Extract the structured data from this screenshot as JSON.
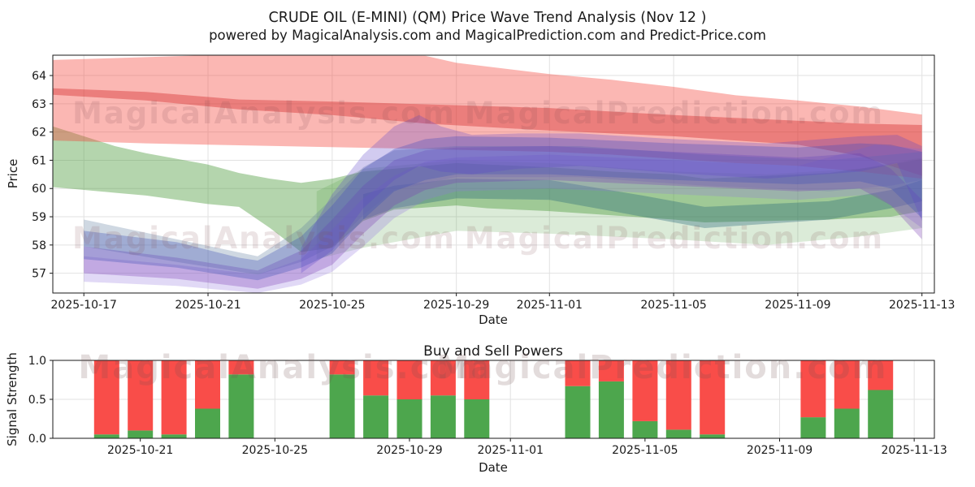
{
  "figure": {
    "title_line1": "CRUDE OIL (E-MINI) (QM) Price Wave Trend Analysis (Nov 12 )",
    "title_line2": "powered by MagicalAnalysis.com and MagicalPrediction.com and Predict-Price.com"
  },
  "watermarks": {
    "left": "MagicalAnalysis.com",
    "right": "MagicalPrediction.com"
  },
  "chart_data": [
    {
      "type": "area",
      "name": "price_wave_trend",
      "xlabel": "Date",
      "ylabel": "Price",
      "ylim": [
        56.3,
        64.72
      ],
      "yticks": [
        57,
        58,
        59,
        60,
        61,
        62,
        63,
        64
      ],
      "x_start": "2025-10-16",
      "x_days": 28.4,
      "x_offset_days": 0,
      "grid": true,
      "xticks": [
        "2025-10-17",
        "2025-10-21",
        "2025-10-25",
        "2025-10-29",
        "2025-11-01",
        "2025-11-05",
        "2025-11-09",
        "2025-11-13"
      ],
      "bands": [
        {
          "name": "pale-green-outer-band",
          "color": "rgba(76,155,60,0.20)",
          "points": [
            [
              8.5,
              57.5,
              59.9
            ],
            [
              10,
              57.9,
              60.7
            ],
            [
              13,
              58.5,
              61.0
            ],
            [
              16,
              58.4,
              60.9
            ],
            [
              20,
              58.2,
              60.6
            ],
            [
              23,
              58.0,
              60.5
            ],
            [
              26,
              58.3,
              60.7
            ],
            [
              28,
              58.6,
              61.1
            ]
          ]
        },
        {
          "name": "green-band",
          "color": "rgba(76,155,60,0.42)",
          "points": [
            [
              0,
              60.05,
              62.2
            ],
            [
              2,
              59.85,
              61.5
            ],
            [
              3,
              59.75,
              61.25
            ],
            [
              5,
              59.45,
              60.85
            ],
            [
              6,
              59.35,
              60.55
            ],
            [
              7,
              58.6,
              60.35
            ],
            [
              8,
              57.75,
              60.2
            ],
            [
              9,
              57.9,
              60.35
            ],
            [
              10,
              58.85,
              60.6
            ],
            [
              11,
              59.25,
              60.7
            ],
            [
              13,
              59.4,
              60.9
            ],
            [
              14,
              59.3,
              60.85
            ],
            [
              16,
              59.2,
              60.75
            ],
            [
              18,
              59.05,
              60.6
            ],
            [
              20,
              58.9,
              60.5
            ],
            [
              21,
              58.8,
              60.35
            ],
            [
              23,
              58.85,
              60.45
            ],
            [
              25,
              58.9,
              60.55
            ],
            [
              27,
              59.0,
              60.85
            ],
            [
              28,
              59.2,
              61.05
            ]
          ]
        },
        {
          "name": "teal-inner-band",
          "color": "rgba(38,100,120,0.35)",
          "points": [
            [
              10,
              58.9,
              59.8
            ],
            [
              11,
              59.3,
              60.1
            ],
            [
              13,
              59.65,
              60.35
            ],
            [
              16,
              59.6,
              60.3
            ],
            [
              19,
              59.0,
              59.75
            ],
            [
              21,
              58.6,
              59.35
            ],
            [
              23,
              58.75,
              59.45
            ],
            [
              25,
              58.9,
              59.55
            ],
            [
              27,
              59.3,
              59.95
            ],
            [
              28,
              59.55,
              60.3
            ]
          ]
        },
        {
          "name": "red-outer-band",
          "color": "rgba(244,67,54,0.38)",
          "points": [
            [
              0,
              61.7,
              64.55
            ],
            [
              3,
              61.6,
              64.65
            ],
            [
              5,
              61.55,
              64.72
            ],
            [
              12,
              61.4,
              64.7
            ],
            [
              13,
              61.37,
              64.45
            ],
            [
              16,
              61.3,
              64.05
            ],
            [
              18,
              61.2,
              63.85
            ],
            [
              20,
              61.05,
              63.6
            ],
            [
              22,
              60.9,
              63.3
            ],
            [
              24,
              60.8,
              63.12
            ],
            [
              26,
              60.6,
              62.9
            ],
            [
              28,
              60.35,
              62.62
            ]
          ]
        },
        {
          "name": "red-inner-band",
          "color": "rgba(211,47,47,0.42)",
          "points": [
            [
              0,
              63.32,
              63.55
            ],
            [
              3,
              63.12,
              63.42
            ],
            [
              6,
              62.8,
              63.15
            ],
            [
              9,
              62.6,
              63.08
            ],
            [
              12,
              62.3,
              62.98
            ],
            [
              16,
              62.05,
              62.85
            ],
            [
              20,
              61.85,
              62.6
            ],
            [
              24,
              61.55,
              62.4
            ],
            [
              26,
              61.15,
              62.3
            ],
            [
              28,
              60.45,
              62.25
            ]
          ]
        },
        {
          "name": "steel-band",
          "color": "rgba(96,125,160,0.30)",
          "points": [
            [
              1,
              57.95,
              58.9
            ],
            [
              4,
              57.4,
              58.2
            ],
            [
              6.6,
              56.95,
              57.6
            ],
            [
              8,
              57.4,
              58.6
            ],
            [
              9,
              57.95,
              59.65
            ],
            [
              10,
              59.05,
              60.75
            ],
            [
              11,
              59.95,
              61.35
            ],
            [
              13,
              60.4,
              61.5
            ],
            [
              17,
              60.4,
              61.5
            ],
            [
              21,
              60.1,
              61.2
            ],
            [
              25,
              59.9,
              61.0
            ],
            [
              27,
              60.1,
              61.2
            ],
            [
              28,
              60.3,
              61.3
            ]
          ]
        },
        {
          "name": "lavender-band",
          "color": "rgba(149,117,222,0.28)",
          "points": [
            [
              1,
              56.7,
              57.6
            ],
            [
              4,
              56.55,
              57.3
            ],
            [
              6.6,
              56.3,
              56.95
            ],
            [
              8,
              56.6,
              57.5
            ],
            [
              9,
              57.05,
              58.55
            ],
            [
              10,
              57.95,
              59.65
            ],
            [
              11,
              58.95,
              60.45
            ],
            [
              12,
              59.6,
              60.95
            ],
            [
              13,
              59.9,
              61.1
            ],
            [
              16,
              60.0,
              61.2
            ],
            [
              20,
              59.8,
              61.0
            ],
            [
              24,
              59.6,
              60.8
            ],
            [
              26.5,
              59.8,
              61.55
            ],
            [
              28,
              58.6,
              61.4
            ]
          ]
        },
        {
          "name": "purple-band",
          "color": "rgba(123,60,180,0.30)",
          "points": [
            [
              1,
              57.0,
              57.95
            ],
            [
              4,
              56.8,
              57.55
            ],
            [
              6.6,
              56.45,
              57.1
            ],
            [
              8,
              56.8,
              57.8
            ],
            [
              9,
              57.3,
              58.9
            ],
            [
              10,
              58.4,
              60.1
            ],
            [
              11,
              59.4,
              61.0
            ],
            [
              12,
              59.95,
              61.35
            ],
            [
              13,
              60.2,
              61.45
            ],
            [
              16,
              60.3,
              61.5
            ],
            [
              20,
              60.1,
              61.3
            ],
            [
              24,
              59.9,
              61.1
            ],
            [
              26,
              60.0,
              61.25
            ],
            [
              27,
              59.4,
              60.7
            ],
            [
              28,
              58.2,
              59.6
            ]
          ]
        },
        {
          "name": "blue-band",
          "color": "rgba(63,81,181,0.33)",
          "points": [
            [
              1,
              57.5,
              58.5
            ],
            [
              4,
              57.2,
              58.1
            ],
            [
              6,
              56.85,
              57.55
            ],
            [
              6.6,
              56.75,
              57.45
            ],
            [
              8,
              57.2,
              58.3
            ],
            [
              9,
              57.7,
              59.4
            ],
            [
              10,
              58.9,
              60.7
            ],
            [
              11,
              59.9,
              61.4
            ],
            [
              12,
              60.3,
              61.75
            ],
            [
              13,
              60.5,
              61.85
            ],
            [
              16,
              60.5,
              61.8
            ],
            [
              20,
              60.3,
              61.6
            ],
            [
              24,
              60.15,
              61.45
            ],
            [
              26,
              60.25,
              61.6
            ],
            [
              27,
              60.0,
              61.55
            ],
            [
              28,
              58.95,
              61.3
            ]
          ]
        },
        {
          "name": "violet-band",
          "color": "rgba(92,70,200,0.28)",
          "points": [
            [
              8,
              57.0,
              57.9
            ],
            [
              9,
              57.8,
              59.8
            ],
            [
              10,
              59.3,
              61.2
            ],
            [
              11,
              60.3,
              62.2
            ],
            [
              11.8,
              60.8,
              62.6
            ],
            [
              12.5,
              60.6,
              62.2
            ],
            [
              13.5,
              60.5,
              61.9
            ],
            [
              15,
              60.7,
              61.95
            ],
            [
              17,
              60.8,
              61.95
            ],
            [
              20,
              60.55,
              61.75
            ],
            [
              23,
              60.35,
              61.6
            ],
            [
              26,
              60.6,
              61.85
            ],
            [
              27.2,
              60.9,
              61.9
            ],
            [
              28,
              58.85,
              61.5
            ]
          ]
        }
      ]
    },
    {
      "type": "bar",
      "name": "buy_sell_powers",
      "title": "Buy and Sell Powers",
      "xlabel": "Date",
      "ylabel": "Signal Strength",
      "ylim": [
        0,
        1
      ],
      "yticks": [
        0,
        0.5,
        1
      ],
      "ytick_labels": [
        "0.0",
        "0.5",
        "1.0"
      ],
      "x_start": "2025-10-18",
      "x_days": 26.2,
      "x_offset_days": 0.4,
      "grid": true,
      "xticks": [
        "2025-10-21",
        "2025-10-25",
        "2025-10-29",
        "2025-11-01",
        "2025-11-05",
        "2025-11-09",
        "2025-11-13"
      ],
      "series": [
        {
          "name": "Buy",
          "color": "#4da64d"
        },
        {
          "name": "Sell",
          "color": "#f94d49"
        }
      ],
      "bars": [
        {
          "date": "2025-10-20",
          "buy": 0.05,
          "sell": 0.95
        },
        {
          "date": "2025-10-21",
          "buy": 0.1,
          "sell": 0.9
        },
        {
          "date": "2025-10-22",
          "buy": 0.05,
          "sell": 0.95
        },
        {
          "date": "2025-10-23",
          "buy": 0.38,
          "sell": 0.62
        },
        {
          "date": "2025-10-24",
          "buy": 0.82,
          "sell": 0.18
        },
        {
          "date": "2025-10-27",
          "buy": 0.82,
          "sell": 0.18
        },
        {
          "date": "2025-10-28",
          "buy": 0.55,
          "sell": 0.45
        },
        {
          "date": "2025-10-29",
          "buy": 0.5,
          "sell": 0.5
        },
        {
          "date": "2025-10-30",
          "buy": 0.55,
          "sell": 0.45
        },
        {
          "date": "2025-10-31",
          "buy": 0.5,
          "sell": 0.5
        },
        {
          "date": "2025-11-03",
          "buy": 0.67,
          "sell": 0.33
        },
        {
          "date": "2025-11-04",
          "buy": 0.73,
          "sell": 0.27
        },
        {
          "date": "2025-11-05",
          "buy": 0.22,
          "sell": 0.78
        },
        {
          "date": "2025-11-06",
          "buy": 0.11,
          "sell": 0.89
        },
        {
          "date": "2025-11-07",
          "buy": 0.05,
          "sell": 0.95
        },
        {
          "date": "2025-11-10",
          "buy": 0.27,
          "sell": 0.73
        },
        {
          "date": "2025-11-11",
          "buy": 0.38,
          "sell": 0.62
        },
        {
          "date": "2025-11-12",
          "buy": 0.62,
          "sell": 0.38
        }
      ]
    }
  ]
}
